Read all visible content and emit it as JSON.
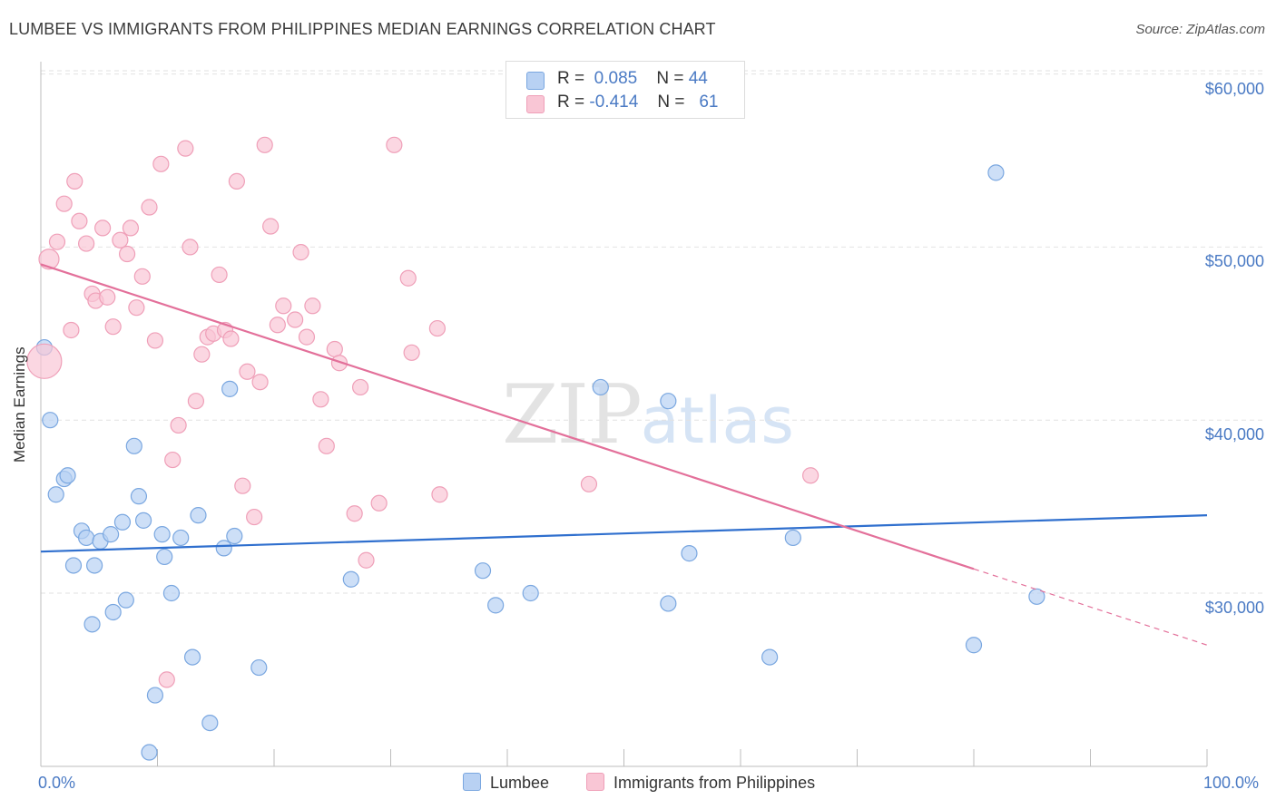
{
  "title": "LUMBEE VS IMMIGRANTS FROM PHILIPPINES MEDIAN EARNINGS CORRELATION CHART",
  "source": "Source: ZipAtlas.com",
  "watermark": {
    "zip": "ZIP",
    "atlas": "atlas"
  },
  "legend": {
    "series1": {
      "r_label": "R =",
      "r_value": "0.085",
      "n_label": "N =",
      "n_value": "44"
    },
    "series2": {
      "r_label": "R =",
      "r_value": "-0.414",
      "n_label": "N =",
      "n_value": "61"
    }
  },
  "colors": {
    "lumbee_fill": "#b8d1f3",
    "lumbee_stroke": "#7aa7e0",
    "lumbee_line": "#2f6fce",
    "phil_fill": "#f9c6d5",
    "phil_stroke": "#ef9fb8",
    "phil_line": "#e3709a",
    "axis_text": "#4a7ac4",
    "grid": "#e2e2e2"
  },
  "chart_data": {
    "type": "scatter",
    "xlabel": "",
    "ylabel": "Median Earnings",
    "xlim": [
      0,
      100
    ],
    "ylim": [
      20000,
      62000
    ],
    "x_tick_labels": [
      "0.0%",
      "100.0%"
    ],
    "y_ticks": [
      30000,
      40000,
      50000,
      60000
    ],
    "y_tick_labels": [
      "$30,000",
      "$40,000",
      "$50,000",
      "$60,000"
    ],
    "legend_placement": "bottom",
    "series": [
      {
        "name": "Lumbee",
        "trend": {
          "x": [
            0,
            100
          ],
          "y": [
            32400,
            34500
          ]
        },
        "points": [
          [
            0.3,
            44200
          ],
          [
            0.8,
            40000
          ],
          [
            1.3,
            35700
          ],
          [
            2.0,
            36600
          ],
          [
            2.3,
            36800
          ],
          [
            2.8,
            31600
          ],
          [
            3.5,
            33600
          ],
          [
            3.9,
            33200
          ],
          [
            4.4,
            28200
          ],
          [
            4.6,
            31600
          ],
          [
            5.1,
            33000
          ],
          [
            6.0,
            33400
          ],
          [
            6.2,
            28900
          ],
          [
            7.0,
            34100
          ],
          [
            7.3,
            29600
          ],
          [
            8.0,
            38500
          ],
          [
            8.4,
            35600
          ],
          [
            8.8,
            34200
          ],
          [
            9.3,
            20800
          ],
          [
            9.8,
            24100
          ],
          [
            10.4,
            33400
          ],
          [
            10.6,
            32100
          ],
          [
            11.2,
            30000
          ],
          [
            12.0,
            33200
          ],
          [
            13.0,
            26300
          ],
          [
            13.5,
            34500
          ],
          [
            14.5,
            22500
          ],
          [
            15.7,
            32600
          ],
          [
            16.2,
            41800
          ],
          [
            16.6,
            33300
          ],
          [
            18.7,
            25700
          ],
          [
            26.6,
            30800
          ],
          [
            37.9,
            31300
          ],
          [
            39.0,
            29300
          ],
          [
            42.0,
            30000
          ],
          [
            48.0,
            41900
          ],
          [
            53.8,
            41100
          ],
          [
            53.8,
            29400
          ],
          [
            55.6,
            32300
          ],
          [
            62.5,
            26300
          ],
          [
            64.5,
            33200
          ],
          [
            80.0,
            27000
          ],
          [
            81.9,
            54300
          ],
          [
            85.4,
            29800
          ]
        ]
      },
      {
        "name": "Immigrants from Philippines",
        "trend": {
          "x": [
            0,
            80
          ],
          "y": [
            49000,
            31400
          ]
        },
        "trend_dashed": {
          "x": [
            80,
            100
          ],
          "y": [
            31400,
            27000
          ]
        },
        "points": [
          [
            0.3,
            43400
          ],
          [
            0.7,
            49300
          ],
          [
            1.4,
            50300
          ],
          [
            2.0,
            52500
          ],
          [
            2.6,
            45200
          ],
          [
            2.9,
            53800
          ],
          [
            3.3,
            51500
          ],
          [
            3.9,
            50200
          ],
          [
            4.4,
            47300
          ],
          [
            4.7,
            46900
          ],
          [
            5.3,
            51100
          ],
          [
            5.7,
            47100
          ],
          [
            6.2,
            45400
          ],
          [
            6.8,
            50400
          ],
          [
            7.4,
            49600
          ],
          [
            7.7,
            51100
          ],
          [
            8.2,
            46500
          ],
          [
            8.7,
            48300
          ],
          [
            9.3,
            52300
          ],
          [
            9.8,
            44600
          ],
          [
            10.3,
            54800
          ],
          [
            10.8,
            25000
          ],
          [
            11.3,
            37700
          ],
          [
            11.8,
            39700
          ],
          [
            12.4,
            55700
          ],
          [
            12.8,
            50000
          ],
          [
            13.3,
            41100
          ],
          [
            13.8,
            43800
          ],
          [
            14.3,
            44800
          ],
          [
            14.8,
            45000
          ],
          [
            15.3,
            48400
          ],
          [
            15.8,
            45200
          ],
          [
            16.3,
            44700
          ],
          [
            16.8,
            53800
          ],
          [
            17.3,
            36200
          ],
          [
            17.7,
            42800
          ],
          [
            18.3,
            34400
          ],
          [
            18.8,
            42200
          ],
          [
            19.2,
            55900
          ],
          [
            19.7,
            51200
          ],
          [
            20.3,
            45500
          ],
          [
            20.8,
            46600
          ],
          [
            21.8,
            45800
          ],
          [
            22.3,
            49700
          ],
          [
            22.8,
            44800
          ],
          [
            23.3,
            46600
          ],
          [
            24.0,
            41200
          ],
          [
            24.5,
            38500
          ],
          [
            25.2,
            44100
          ],
          [
            25.6,
            43300
          ],
          [
            26.9,
            34600
          ],
          [
            27.4,
            41900
          ],
          [
            27.9,
            31900
          ],
          [
            29.0,
            35200
          ],
          [
            30.3,
            55900
          ],
          [
            31.5,
            48200
          ],
          [
            31.8,
            43900
          ],
          [
            34.0,
            45300
          ],
          [
            34.2,
            35700
          ],
          [
            47.0,
            36300
          ],
          [
            66.0,
            36800
          ]
        ]
      }
    ]
  }
}
